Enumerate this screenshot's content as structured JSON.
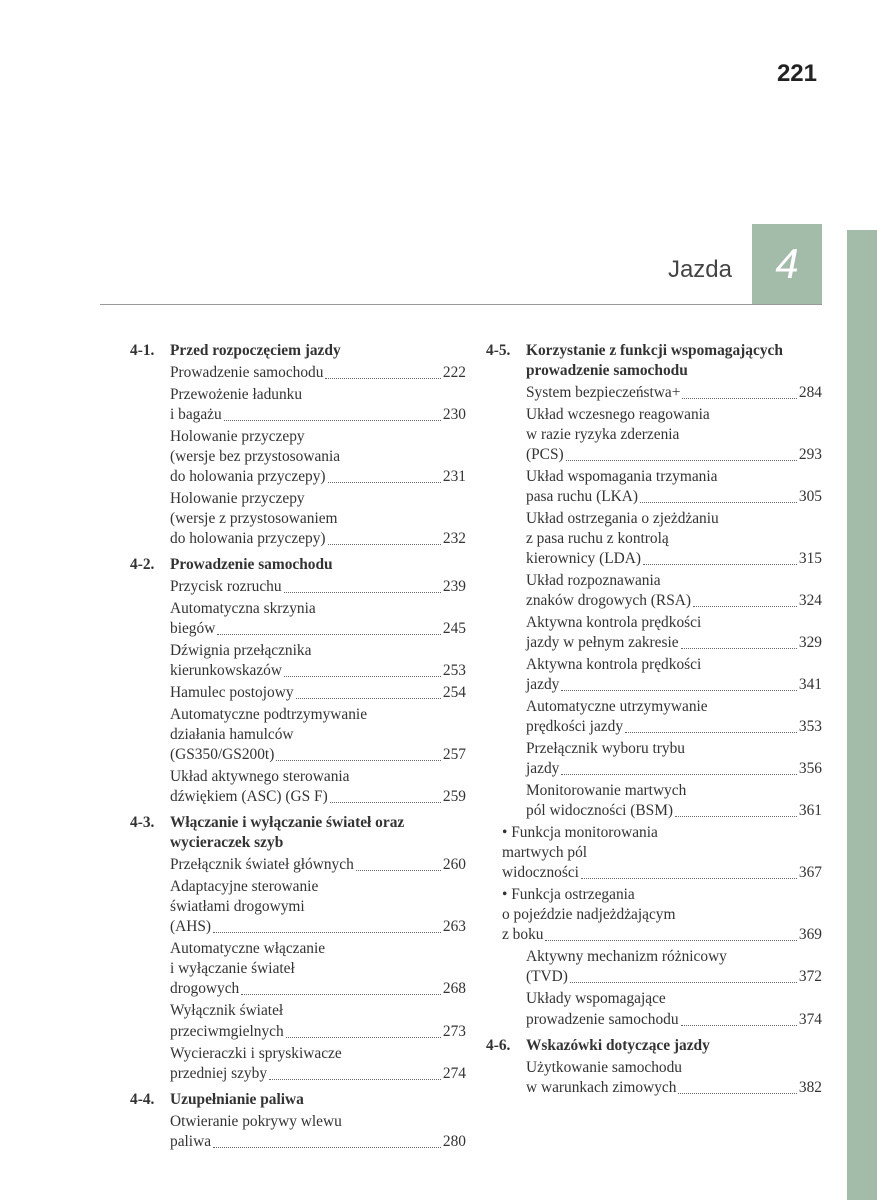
{
  "page_number": "221",
  "chapter_title": "Jazda",
  "chapter_number": "4",
  "theme": {
    "sidebar_color": "#a3bca9",
    "text_color": "#333333",
    "background": "#ffffff"
  },
  "left_column": [
    {
      "type": "head",
      "num": "4-1.",
      "title": "Przed rozpoczęciem jazdy"
    },
    {
      "type": "entry",
      "lines": [
        "Prowadzenie samochodu"
      ],
      "page": "222"
    },
    {
      "type": "entry",
      "lines": [
        "Przewożenie ładunku",
        "i bagażu"
      ],
      "page": "230"
    },
    {
      "type": "entry",
      "lines": [
        "Holowanie przyczepy",
        "(wersje bez przystosowania",
        "do holowania przyczepy)"
      ],
      "page": "231"
    },
    {
      "type": "entry",
      "lines": [
        "Holowanie przyczepy",
        "(wersje z przystosowaniem",
        "do holowania przyczepy)"
      ],
      "page": "232"
    },
    {
      "type": "head",
      "num": "4-2.",
      "title": "Prowadzenie samochodu"
    },
    {
      "type": "entry",
      "lines": [
        "Przycisk rozruchu"
      ],
      "page": "239"
    },
    {
      "type": "entry",
      "lines": [
        "Automatyczna skrzynia",
        "biegów"
      ],
      "page": "245"
    },
    {
      "type": "entry",
      "lines": [
        "Dźwignia przełącznika",
        "kierunkowskazów"
      ],
      "page": "253"
    },
    {
      "type": "entry",
      "lines": [
        "Hamulec postojowy"
      ],
      "page": "254"
    },
    {
      "type": "entry",
      "lines": [
        "Automatyczne podtrzymywanie",
        "działania hamulców",
        "(GS350/GS200t)"
      ],
      "page": "257"
    },
    {
      "type": "entry",
      "lines": [
        "Układ aktywnego sterowania",
        "dźwiękiem (ASC) (GS F)"
      ],
      "page": "259"
    },
    {
      "type": "head",
      "num": "4-3.",
      "title": "Włączanie i wyłączanie świateł oraz wycieraczek szyb"
    },
    {
      "type": "entry",
      "lines": [
        "Przełącznik świateł głównych"
      ],
      "page": "260"
    },
    {
      "type": "entry",
      "lines": [
        "Adaptacyjne sterowanie",
        "światłami drogowymi",
        "(AHS)"
      ],
      "page": "263"
    },
    {
      "type": "entry",
      "lines": [
        "Automatyczne włączanie",
        "i wyłączanie świateł",
        "drogowych"
      ],
      "page": "268"
    },
    {
      "type": "entry",
      "lines": [
        "Wyłącznik świateł",
        "przeciwmgielnych"
      ],
      "page": "273"
    },
    {
      "type": "entry",
      "lines": [
        "Wycieraczki i spryskiwacze",
        "przedniej szyby"
      ],
      "page": "274"
    },
    {
      "type": "head",
      "num": "4-4.",
      "title": "Uzupełnianie paliwa"
    },
    {
      "type": "entry",
      "lines": [
        "Otwieranie pokrywy wlewu",
        "paliwa"
      ],
      "page": "280"
    }
  ],
  "right_column": [
    {
      "type": "head",
      "num": "4-5.",
      "title": "Korzystanie z funkcji wspomagających prowadzenie samochodu"
    },
    {
      "type": "entry",
      "lines": [
        "System bezpieczeństwa+"
      ],
      "page": "284"
    },
    {
      "type": "entry",
      "lines": [
        "Układ wczesnego reagowania",
        "w razie ryzyka zderzenia",
        "(PCS)"
      ],
      "page": "293"
    },
    {
      "type": "entry",
      "lines": [
        "Układ wspomagania trzymania",
        "pasa ruchu (LKA)"
      ],
      "page": "305"
    },
    {
      "type": "entry",
      "lines": [
        "Układ ostrzegania o zjeżdżaniu",
        "z pasa ruchu z kontrolą",
        "kierownicy (LDA)"
      ],
      "page": "315"
    },
    {
      "type": "entry",
      "lines": [
        "Układ rozpoznawania",
        "znaków drogowych (RSA)"
      ],
      "page": "324"
    },
    {
      "type": "entry",
      "lines": [
        "Aktywna kontrola prędkości",
        "jazdy w pełnym zakresie"
      ],
      "page": "329"
    },
    {
      "type": "entry",
      "lines": [
        "Aktywna kontrola prędkości",
        "jazdy"
      ],
      "page": "341"
    },
    {
      "type": "entry",
      "lines": [
        "Automatyczne utrzymywanie",
        "prędkości jazdy"
      ],
      "page": "353"
    },
    {
      "type": "entry",
      "lines": [
        "Przełącznik wyboru trybu",
        "jazdy"
      ],
      "page": "356"
    },
    {
      "type": "entry",
      "lines": [
        "Monitorowanie martwych",
        "pól widoczności (BSM)"
      ],
      "page": "361"
    },
    {
      "type": "sub",
      "bullet": true,
      "lines": [
        "Funkcja monitorowania",
        "martwych pól",
        "widoczności"
      ],
      "page": "367"
    },
    {
      "type": "sub",
      "bullet": true,
      "lines": [
        "Funkcja ostrzegania",
        "o pojeździe nadjeżdżającym",
        "z boku"
      ],
      "page": "369"
    },
    {
      "type": "entry",
      "lines": [
        "Aktywny mechanizm różnicowy",
        "(TVD)"
      ],
      "page": "372"
    },
    {
      "type": "entry",
      "lines": [
        "Układy wspomagające",
        "prowadzenie samochodu"
      ],
      "page": "374"
    },
    {
      "type": "head",
      "num": "4-6.",
      "title": "Wskazówki dotyczące jazdy"
    },
    {
      "type": "entry",
      "lines": [
        "Użytkowanie samochodu",
        "w warunkach zimowych"
      ],
      "page": "382"
    }
  ]
}
